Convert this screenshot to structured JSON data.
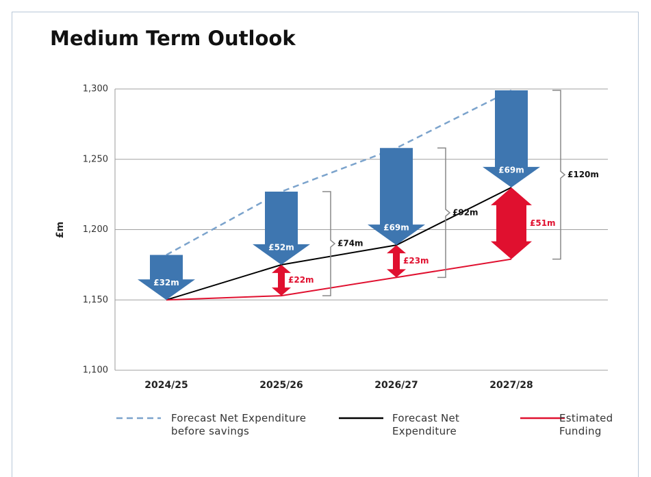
{
  "chart_data": {
    "type": "line",
    "title": "Medium Term Outlook",
    "y_label": "£m",
    "categories": [
      "2024/25",
      "2025/26",
      "2026/27",
      "2027/28"
    ],
    "series": [
      {
        "name": "Forecast Net Expenditure before savings",
        "color": "#7ba3cc",
        "dashed": true,
        "values": [
          1182,
          1227,
          1258,
          1299
        ]
      },
      {
        "name": "Forecast Net Expenditure",
        "color": "#000000",
        "values": [
          1150,
          1175,
          1189,
          1230
        ]
      },
      {
        "name": "Estimated Funding",
        "color": "#e0102f",
        "values": [
          1150,
          1153,
          1166,
          1179
        ]
      }
    ],
    "savings_labels": [
      "£32m",
      "£52m",
      "£69m",
      "£69m"
    ],
    "savings_color": "#3e76b0",
    "gap_labels": [
      null,
      "£22m",
      "£23m",
      "£51m"
    ],
    "gap_color": "#e0102f",
    "total_labels": [
      null,
      "£74m",
      "£92m",
      "£120m"
    ],
    "ylim": [
      1100,
      1300
    ],
    "yticks": [
      {
        "value": 1100,
        "label": "1,100"
      },
      {
        "value": 1150,
        "label": "1,150"
      },
      {
        "value": 1200,
        "label": "1,200"
      },
      {
        "value": 1250,
        "label": "1,250"
      },
      {
        "value": 1300,
        "label": "1,300"
      }
    ],
    "grid": true,
    "legend": "bottom"
  }
}
